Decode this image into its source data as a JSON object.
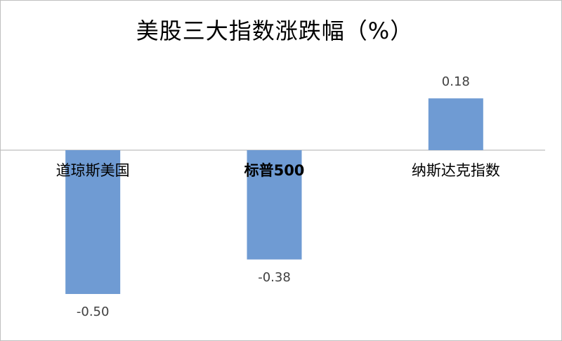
{
  "chart_data": {
    "type": "bar",
    "title": "美股三大指数涨跌幅（%）",
    "categories": [
      "道琼斯美国",
      "标普500",
      "纳斯达克指数"
    ],
    "values": [
      -0.5,
      -0.38,
      0.18
    ],
    "data_labels": [
      "-0.50",
      "-0.38",
      "0.18"
    ],
    "xlabel": "",
    "ylabel": "",
    "ylim": [
      -0.5,
      0.18
    ],
    "grid": false,
    "legend": "none",
    "bar_color": "#6f9bd3",
    "axis_color": "#c8c8c8"
  }
}
